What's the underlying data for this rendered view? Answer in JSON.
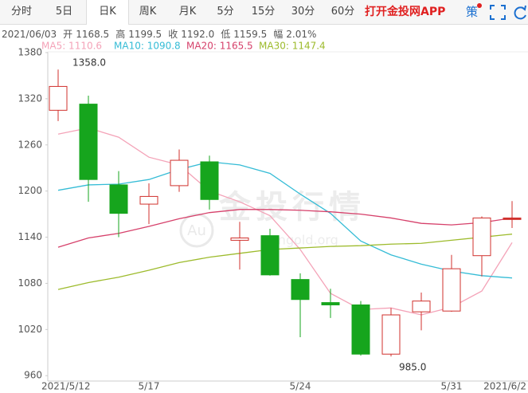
{
  "tabs": [
    "分时",
    "5日",
    "日K",
    "周K",
    "月K",
    "5分",
    "15分",
    "30分",
    "60分"
  ],
  "selected_tab": "日K",
  "app_link": "打开金投网APP",
  "strategy": "策",
  "watermark": {
    "logo": "Au",
    "title": "金投行情",
    "site": "cngold.org"
  },
  "chart_data": {
    "type": "candlestick",
    "info": {
      "date": "2021/06/03",
      "items": [
        [
          "开",
          "1168.5"
        ],
        [
          "高",
          "1199.5"
        ],
        [
          "收",
          "1192.0"
        ],
        [
          "低",
          "1159.5"
        ],
        [
          "幅",
          "2.01%"
        ]
      ]
    },
    "categories": [
      "2021/5/12",
      null,
      null,
      "5/17",
      null,
      null,
      null,
      null,
      "5/24",
      null,
      null,
      null,
      null,
      "5/31",
      null,
      "2021/6/2"
    ],
    "open": [
      1305,
      1313,
      1208,
      1183,
      1207,
      1238,
      1136,
      1142,
      1085,
      1055,
      1052,
      988,
      1043,
      1044,
      1116,
      1163
    ],
    "high": [
      1358,
      1324,
      1226,
      1210,
      1254,
      1246,
      1160,
      1151,
      1093,
      1073,
      1057,
      1048,
      1068,
      1117,
      1167,
      1187
    ],
    "low": [
      1291,
      1186,
      1140,
      1157,
      1199,
      1176,
      1098,
      1090,
      1010,
      1035,
      986,
      985,
      1019,
      1043,
      1089,
      1152
    ],
    "close": [
      1336,
      1215,
      1171,
      1193,
      1240,
      1189,
      1139,
      1091,
      1059,
      1052,
      988,
      1039,
      1057,
      1099,
      1165,
      1165
    ],
    "up_color": "#d0312d",
    "down_color": "#16a51d",
    "annotations": [
      "1358.0",
      "985.0"
    ],
    "series": [
      {
        "name": "MA5: 1110.6",
        "color": "#f4a3b8",
        "values": [
          1274,
          1282,
          1270,
          1244,
          1234,
          1200,
          1186,
          1168,
          1124,
          1067,
          1046,
          1048,
          1039,
          1049,
          1070,
          1133
        ]
      },
      {
        "name": "MA10: 1090.8",
        "color": "#35bcd6",
        "values": [
          1201,
          1208,
          1209,
          1215,
          1228,
          1238,
          1234,
          1223,
          1196,
          1171,
          1135,
          1117,
          1105,
          1096,
          1090,
          1087
        ]
      },
      {
        "name": "MA20: 1165.5",
        "color": "#d6416b",
        "values": [
          1127,
          1139,
          1145,
          1154,
          1164,
          1172,
          1176,
          1176,
          1175,
          1173,
          1170,
          1165,
          1158,
          1156,
          1159,
          1165
        ]
      },
      {
        "name": "MA30: 1147.4",
        "color": "#9dbb2c",
        "values": [
          1072,
          1081,
          1088,
          1097,
          1107,
          1114,
          1119,
          1124,
          1126,
          1128,
          1129,
          1131,
          1132,
          1136,
          1140,
          1144
        ]
      }
    ],
    "ylim": [
      953,
      1381
    ],
    "yticks": [
      1380,
      1320,
      1260,
      1200,
      1140,
      1080,
      1020,
      960
    ]
  }
}
